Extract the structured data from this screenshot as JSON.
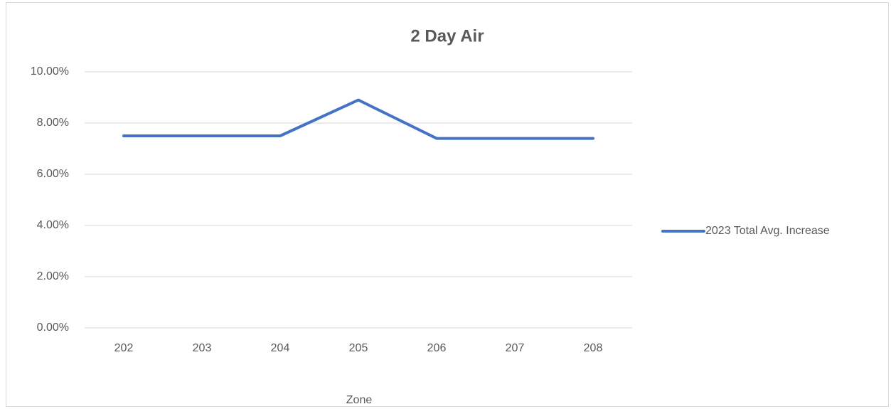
{
  "chart_data": {
    "type": "line",
    "title": "2 Day Air",
    "x_label": "Zone",
    "categories": [
      "202",
      "203",
      "204",
      "205",
      "206",
      "207",
      "208"
    ],
    "series": [
      {
        "name": "2023 Total Avg. Increase",
        "color": "#4472c4",
        "values": [
          7.5,
          7.5,
          7.5,
          8.9,
          7.4,
          7.4,
          7.4
        ]
      }
    ],
    "ylim": [
      0,
      10
    ],
    "yticks": [
      {
        "value": 0,
        "label": "0.00%"
      },
      {
        "value": 2,
        "label": "2.00%"
      },
      {
        "value": 4,
        "label": "4.00%"
      },
      {
        "value": 6,
        "label": "6.00%"
      },
      {
        "value": 8,
        "label": "8.00%"
      },
      {
        "value": 10,
        "label": "10.00%"
      }
    ],
    "grid": true,
    "legend": "right"
  }
}
